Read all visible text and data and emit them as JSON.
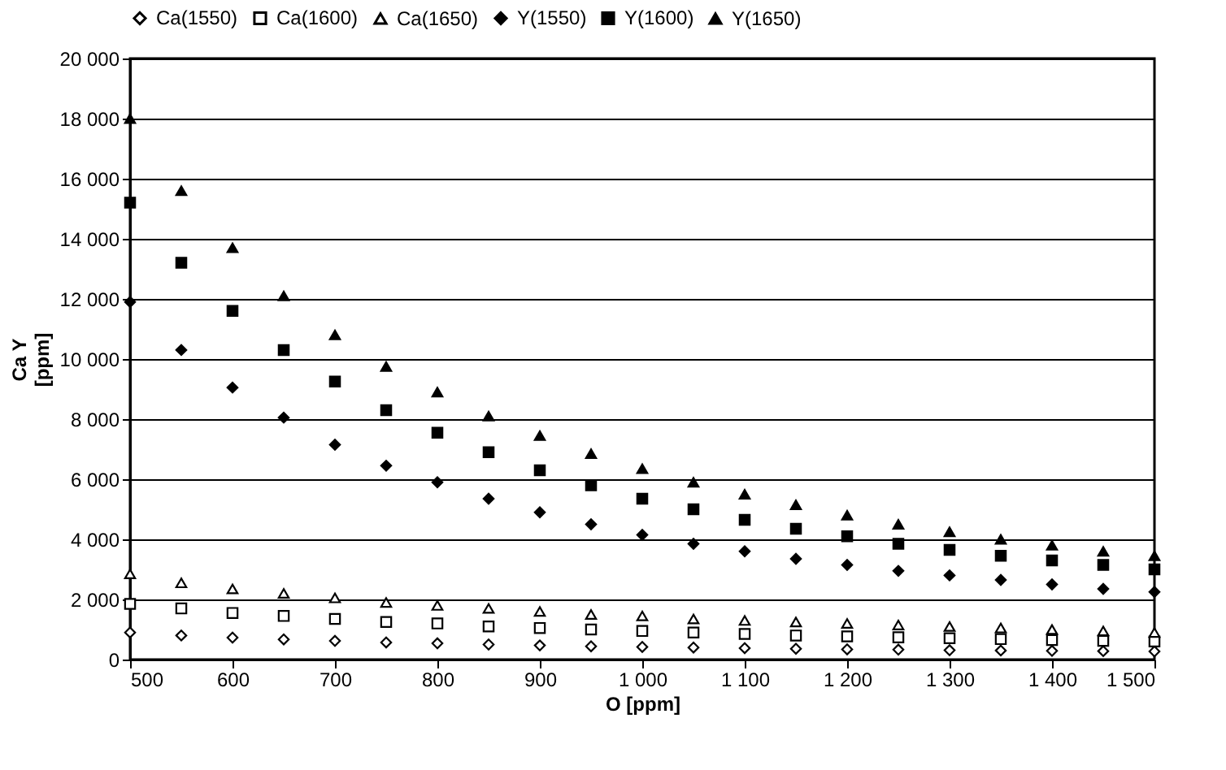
{
  "chart_data": {
    "type": "scatter",
    "xlabel": "O [ppm]",
    "ylabel": "Ca Y\n[ppm]",
    "x": [
      500,
      550,
      600,
      650,
      700,
      750,
      800,
      850,
      900,
      950,
      1000,
      1050,
      1100,
      1150,
      1200,
      1250,
      1300,
      1350,
      1400,
      1450,
      1500
    ],
    "series": [
      {
        "name": "Ca(1550)",
        "color": "#ffffff",
        "marker": "diamond",
        "values": [
          900,
          800,
          730,
          670,
          620,
          570,
          540,
          500,
          470,
          440,
          420,
          400,
          380,
          360,
          340,
          330,
          310,
          300,
          290,
          280,
          270
        ]
      },
      {
        "name": "Ca(1600)",
        "color": "#ffffff",
        "marker": "square",
        "values": [
          1850,
          1700,
          1550,
          1450,
          1350,
          1250,
          1200,
          1100,
          1050,
          1000,
          950,
          900,
          850,
          800,
          770,
          740,
          710,
          680,
          650,
          620,
          600
        ]
      },
      {
        "name": "Ca(1650)",
        "color": "#ffffff",
        "marker": "triangle",
        "values": [
          2850,
          2550,
          2350,
          2200,
          2050,
          1900,
          1800,
          1700,
          1600,
          1500,
          1450,
          1350,
          1300,
          1250,
          1200,
          1150,
          1100,
          1050,
          1000,
          950,
          900
        ]
      },
      {
        "name": "Y(1550)",
        "color": "#000000",
        "marker": "diamond",
        "values": [
          11900,
          10300,
          9050,
          8050,
          7150,
          6450,
          5900,
          5350,
          4900,
          4500,
          4150,
          3850,
          3600,
          3350,
          3150,
          2950,
          2800,
          2650,
          2500,
          2350,
          2250
        ]
      },
      {
        "name": "Y(1600)",
        "color": "#000000",
        "marker": "square",
        "values": [
          15200,
          13200,
          11600,
          10300,
          9250,
          8300,
          7550,
          6900,
          6300,
          5800,
          5350,
          5000,
          4650,
          4350,
          4100,
          3850,
          3650,
          3450,
          3300,
          3150,
          3000
        ]
      },
      {
        "name": "Y(1650)",
        "color": "#000000",
        "marker": "triangle",
        "values": [
          18000,
          15600,
          13700,
          12100,
          10800,
          9750,
          8900,
          8100,
          7450,
          6850,
          6350,
          5900,
          5500,
          5150,
          4800,
          4500,
          4250,
          4000,
          3800,
          3600,
          3450
        ]
      }
    ],
    "xlim": [
      500,
      1500
    ],
    "xticks": [
      500,
      600,
      700,
      800,
      900,
      {
        "value": 1000,
        "label": "1 000"
      },
      {
        "value": 1100,
        "label": "1 100"
      },
      {
        "value": 1200,
        "label": "1 200"
      },
      {
        "value": 1300,
        "label": "1 300"
      },
      {
        "value": 1400,
        "label": "1 400"
      },
      {
        "value": 1500,
        "label": "1 500"
      }
    ],
    "ylim": [
      0,
      20000
    ],
    "yticks": [
      0,
      {
        "value": 2000,
        "label": "2 000"
      },
      {
        "value": 4000,
        "label": "4 000"
      },
      {
        "value": 6000,
        "label": "6 000"
      },
      {
        "value": 8000,
        "label": "8 000"
      },
      {
        "value": 10000,
        "label": "10 000"
      },
      {
        "value": 12000,
        "label": "12 000"
      },
      {
        "value": 14000,
        "label": "14 000"
      },
      {
        "value": 16000,
        "label": "16 000"
      },
      {
        "value": 18000,
        "label": "18 000"
      },
      {
        "value": 20000,
        "label": "20 000"
      }
    ],
    "grid": "y",
    "legend": "top"
  }
}
